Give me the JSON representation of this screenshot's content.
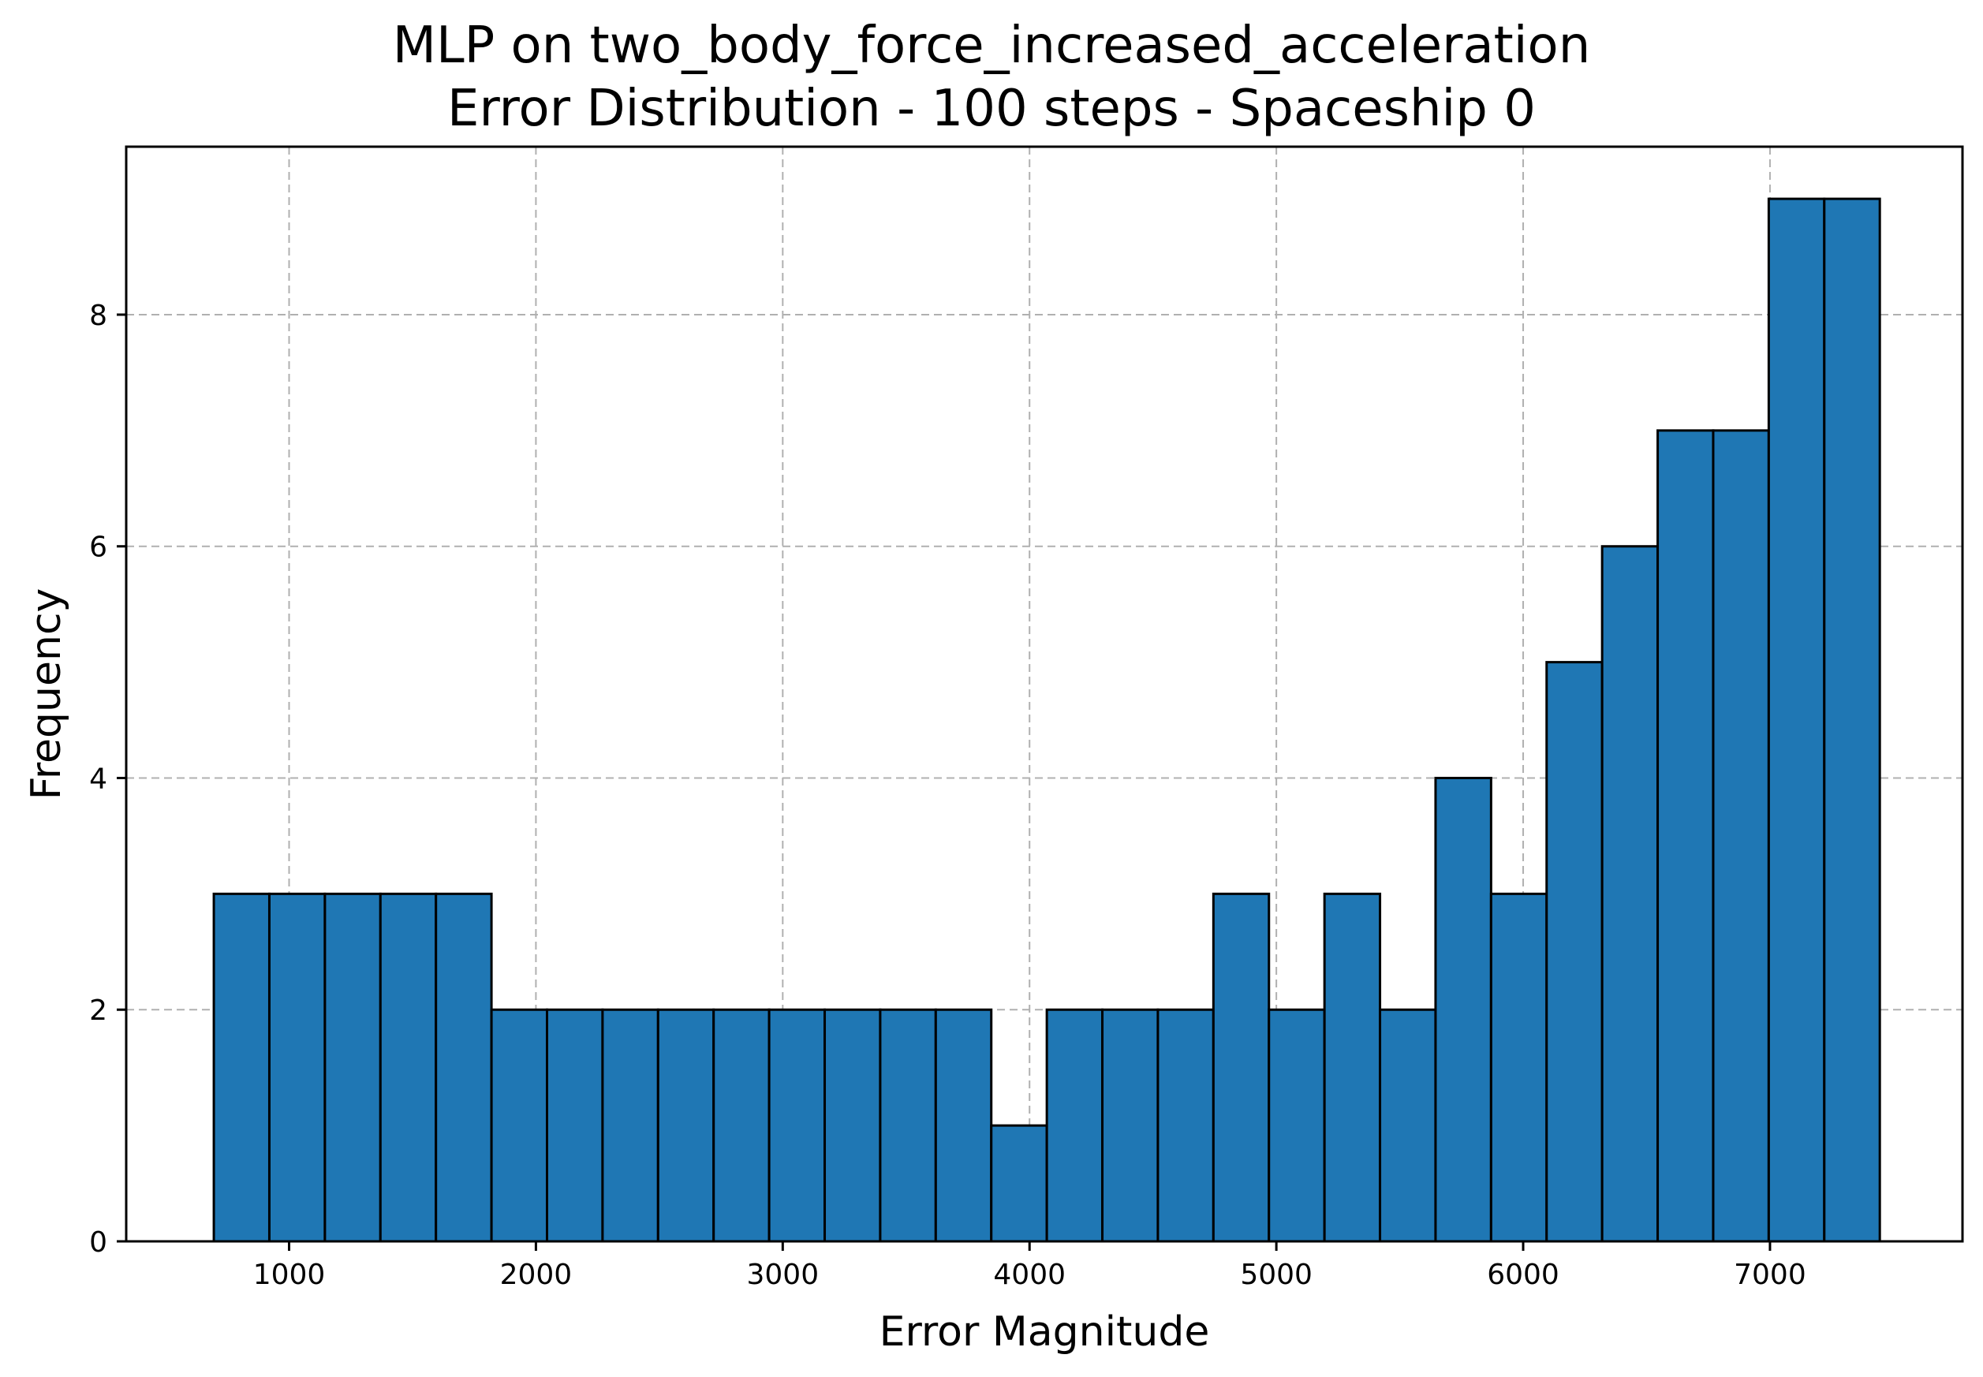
{
  "chart_data": {
    "type": "bar",
    "title": [
      "MLP on two_body_force_increased_acceleration",
      "Error Distribution - 100 steps - Spaceship 0"
    ],
    "xlabel": "Error Magnitude",
    "ylabel": "Frequency",
    "xlim": [
      340,
      7780
    ],
    "ylim": [
      0,
      9.45
    ],
    "grid": true,
    "bar_color": "#1f77b4",
    "edge_color": "#000000",
    "xticks": [
      1000,
      2000,
      3000,
      4000,
      5000,
      6000,
      7000
    ],
    "yticks": [
      0,
      2,
      4,
      6,
      8
    ],
    "bin_edges": [
      695,
      920,
      1145,
      1370,
      1595,
      1820,
      2045,
      2270,
      2495,
      2720,
      2945,
      3170,
      3395,
      3620,
      3845,
      4070,
      4295,
      4520,
      4745,
      4970,
      5195,
      5420,
      5645,
      5870,
      6095,
      6320,
      6545,
      6770,
      6995,
      7220,
      7445
    ],
    "values": [
      3,
      3,
      3,
      3,
      3,
      2,
      2,
      2,
      2,
      2,
      2,
      2,
      2,
      2,
      1,
      2,
      2,
      2,
      3,
      2,
      3,
      2,
      4,
      3,
      5,
      6,
      7,
      7,
      9,
      9
    ]
  }
}
